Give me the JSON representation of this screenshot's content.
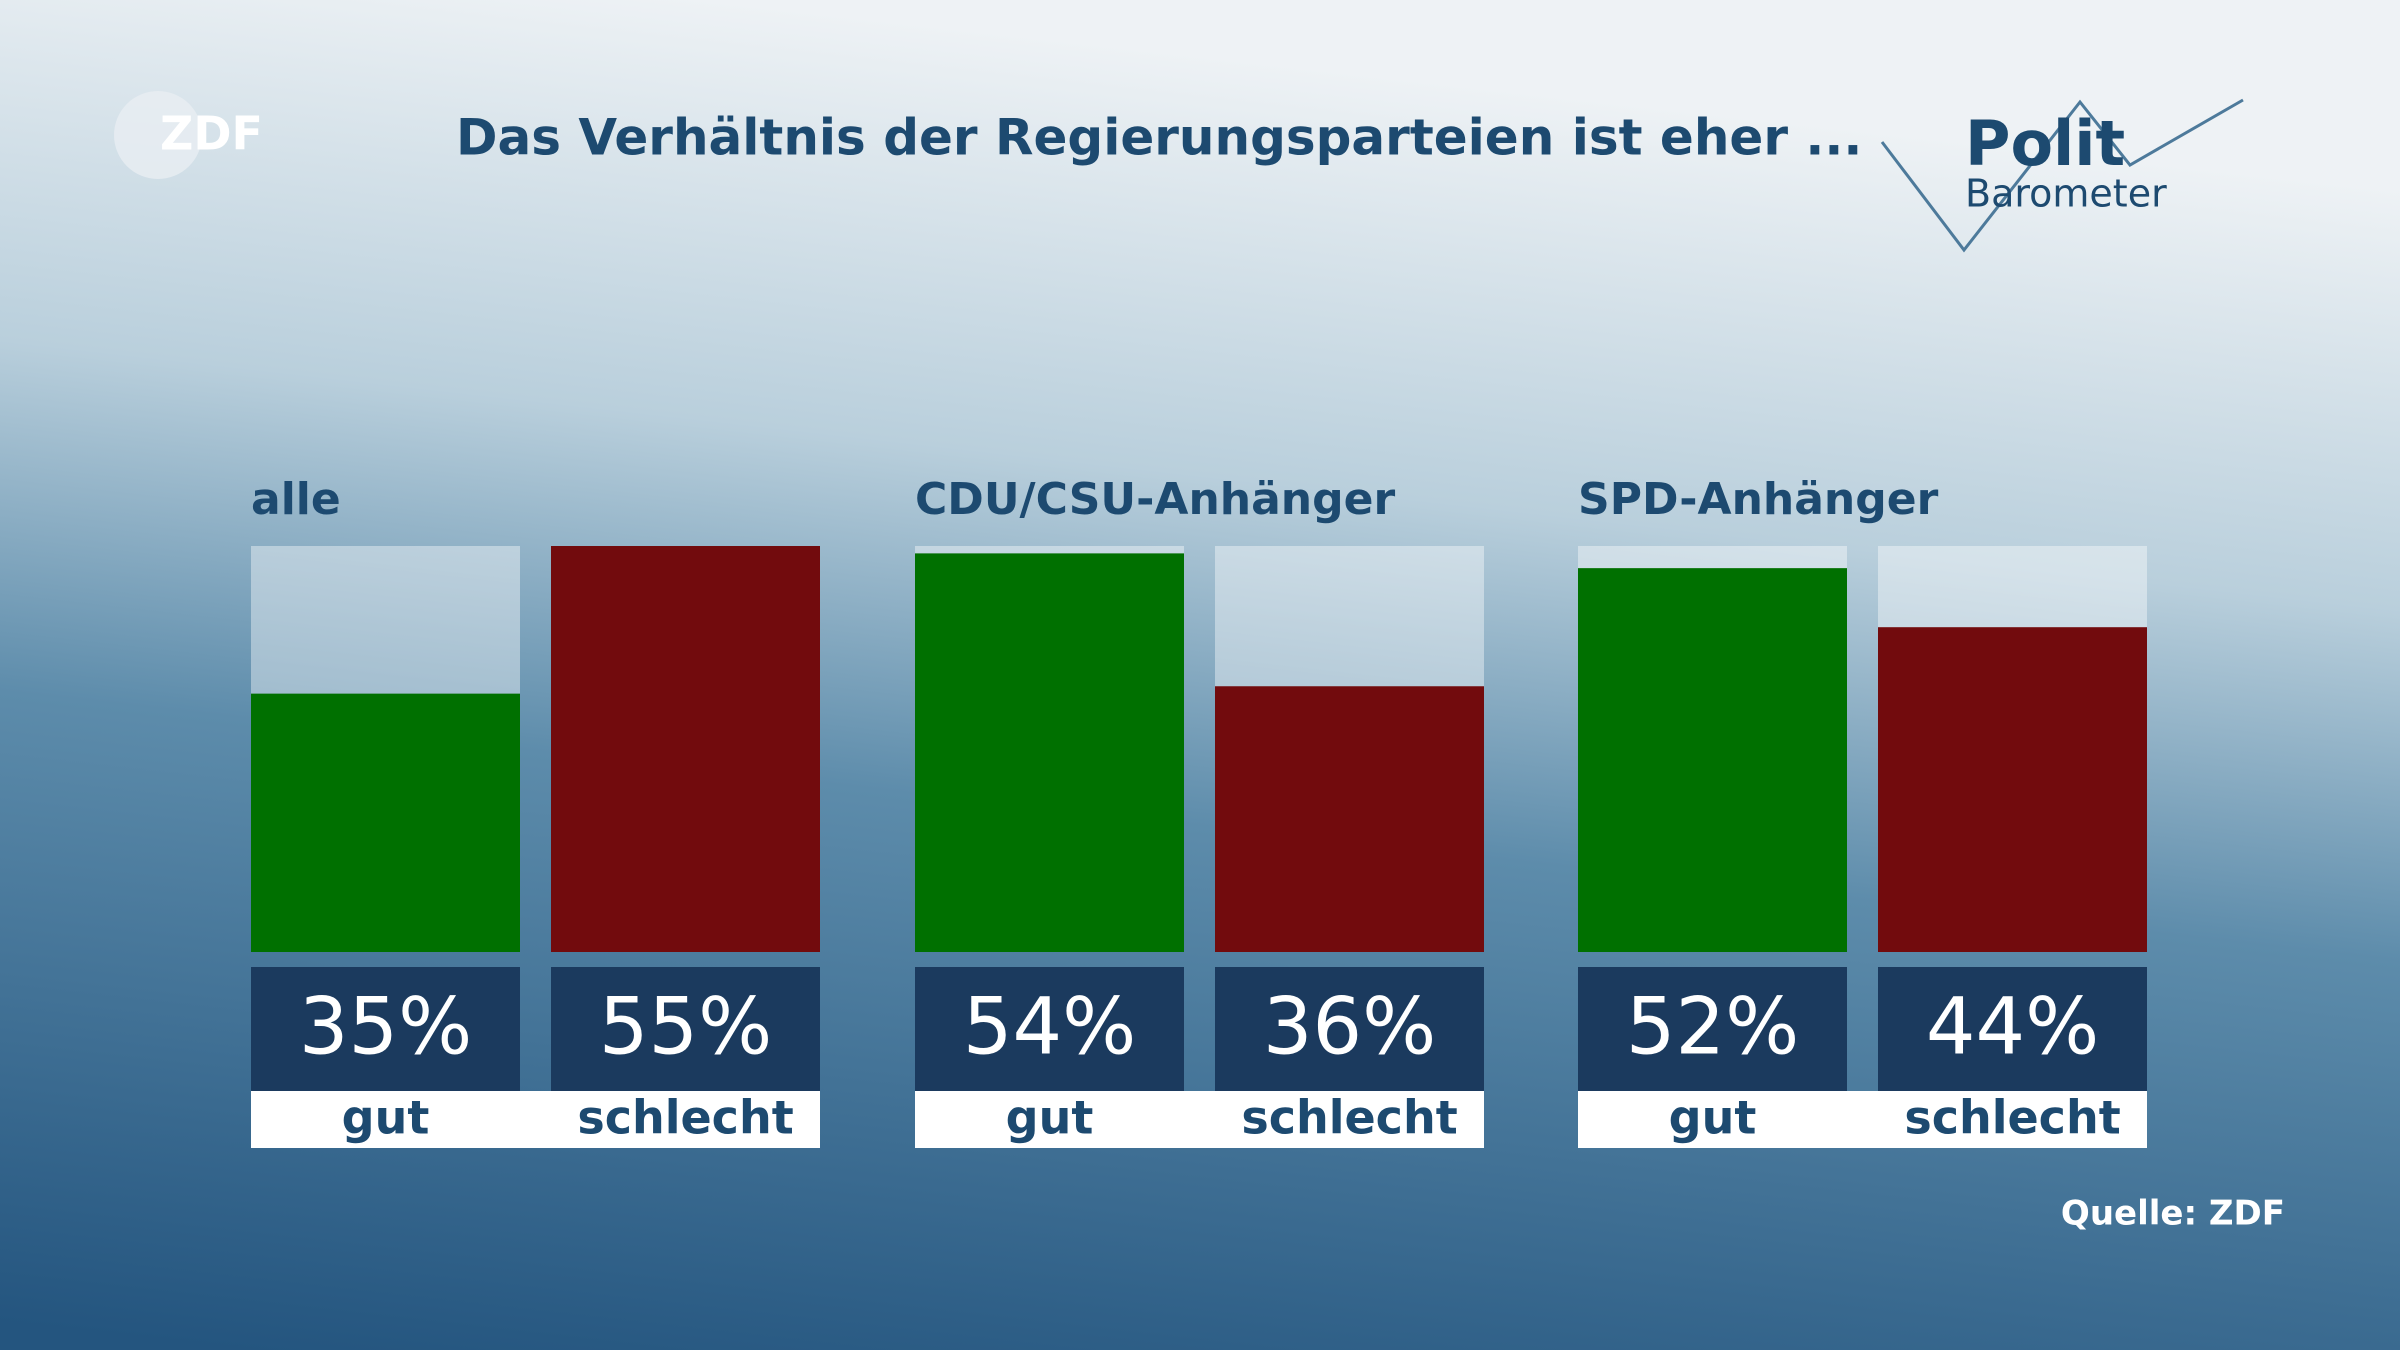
{
  "chart_data": {
    "type": "bar",
    "title": "Das Verhältnis der Regierungsparteien ist eher ...",
    "logo": "ZDF",
    "brand": [
      "Polit",
      "Barometer"
    ],
    "source": "Quelle: ZDF",
    "categories": [
      "alle",
      "CDU/CSU-Anhänger",
      "SPD-Anhänger"
    ],
    "ylim": [
      0,
      55
    ],
    "series": [
      {
        "name": "gut",
        "color": "#007000",
        "values": [
          35,
          54,
          52
        ],
        "value_labels": [
          "35%",
          "54%",
          "52%"
        ]
      },
      {
        "name": "schlecht",
        "color": "#720b0d",
        "values": [
          55,
          36,
          44
        ],
        "value_labels": [
          "55%",
          "36%",
          "44%"
        ]
      }
    ]
  }
}
